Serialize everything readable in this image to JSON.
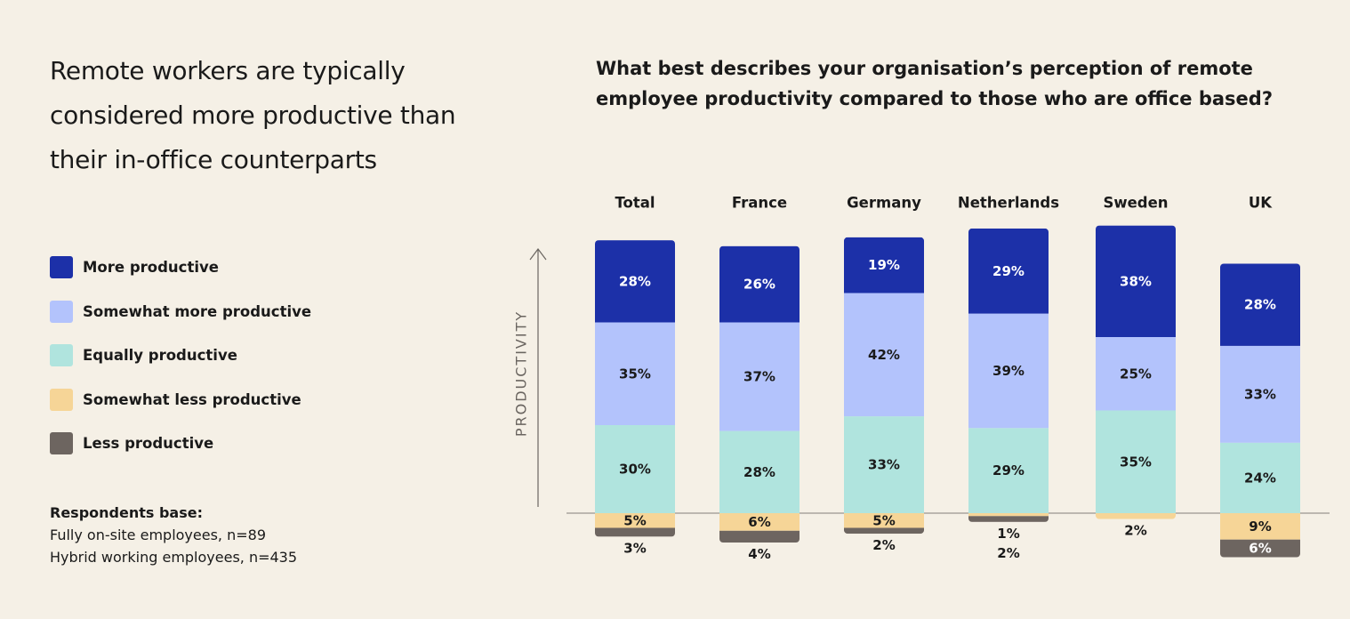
{
  "headline": "Remote workers are typically considered more productive than their in-office counterparts",
  "legend": [
    {
      "label": "More productive",
      "color": "#1c30a8"
    },
    {
      "label": "Somewhat more productive",
      "color": "#b3c3fc"
    },
    {
      "label": "Equally productive",
      "color": "#b0e4de"
    },
    {
      "label": "Somewhat less productive",
      "color": "#f6d597"
    },
    {
      "label": "Less productive",
      "color": "#6d6560"
    }
  ],
  "respondents": {
    "title": "Respondents base:",
    "lines": [
      "Fully on-site employees, n=89",
      "Hybrid working employees, n=435"
    ]
  },
  "chart_data": {
    "type": "bar",
    "stacked": "diverging",
    "title": "What best describes your organisation’s perception of remote employee productivity compared to those who are office based?",
    "ylabel": "PRODUCTIVITY",
    "xlabel": "",
    "categories": [
      "Total",
      "France",
      "Germany",
      "Netherlands",
      "Sweden",
      "UK"
    ],
    "series": [
      {
        "name": "More productive",
        "color": "#1c30a8",
        "direction": "positive",
        "values": [
          28,
          26,
          19,
          29,
          38,
          28
        ]
      },
      {
        "name": "Somewhat more productive",
        "color": "#b3c3fc",
        "direction": "positive",
        "values": [
          35,
          37,
          42,
          39,
          25,
          33
        ]
      },
      {
        "name": "Equally productive",
        "color": "#b0e4de",
        "direction": "positive",
        "values": [
          30,
          28,
          33,
          29,
          35,
          24
        ]
      },
      {
        "name": "Somewhat less productive",
        "color": "#f6d597",
        "direction": "negative",
        "values": [
          5,
          6,
          5,
          1,
          2,
          9
        ]
      },
      {
        "name": "Less productive",
        "color": "#6d6560",
        "direction": "negative",
        "values": [
          3,
          4,
          2,
          2,
          0,
          6
        ]
      }
    ],
    "labels": [
      [
        "28%",
        "35%",
        "30%",
        "5%",
        "3%"
      ],
      [
        "26%",
        "37%",
        "28%",
        "6%",
        "4%"
      ],
      [
        "19%",
        "42%",
        "33%",
        "5%",
        "2%"
      ],
      [
        "29%",
        "39%",
        "29%",
        "1%",
        "2%"
      ],
      [
        "38%",
        "25%",
        "35%",
        "2%",
        ""
      ],
      [
        "28%",
        "33%",
        "24%",
        "9%",
        "6%"
      ]
    ]
  }
}
